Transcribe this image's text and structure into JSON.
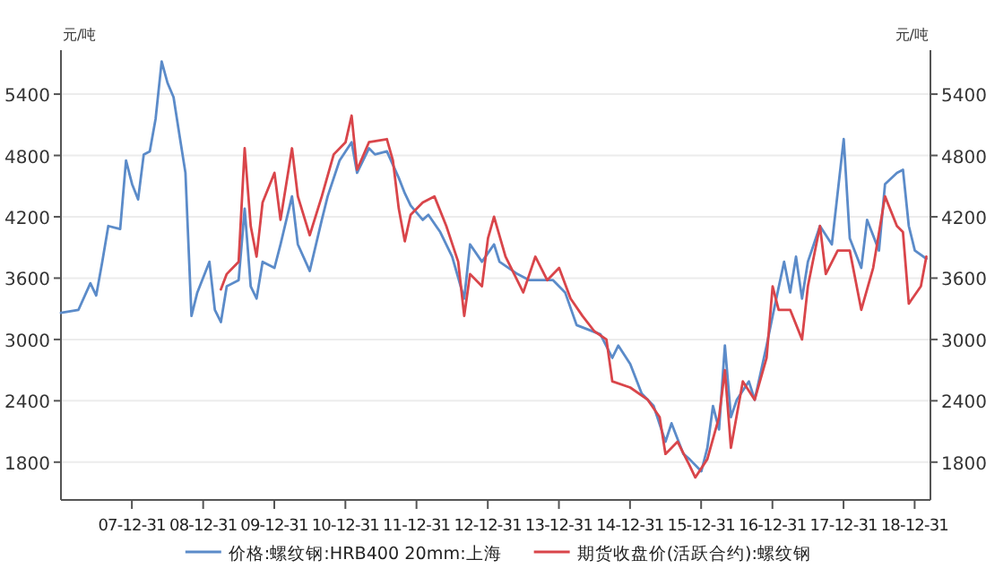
{
  "chart_data": {
    "type": "line",
    "ylabel": "元/吨",
    "y2label": "元/吨",
    "xlim": [
      "2007-01-01",
      "2019-03-22"
    ],
    "xticks": [
      {
        "value": "2007-12-31",
        "label": "07-12-31"
      },
      {
        "value": "2008-12-31",
        "label": "08-12-31"
      },
      {
        "value": "2009-12-31",
        "label": "09-12-31"
      },
      {
        "value": "2010-12-31",
        "label": "10-12-31"
      },
      {
        "value": "2011-12-31",
        "label": "11-12-31"
      },
      {
        "value": "2012-12-31",
        "label": "12-12-31"
      },
      {
        "value": "2013-12-31",
        "label": "13-12-31"
      },
      {
        "value": "2014-12-31",
        "label": "14-12-31"
      },
      {
        "value": "2015-12-31",
        "label": "15-12-31"
      },
      {
        "value": "2016-12-31",
        "label": "16-12-31"
      },
      {
        "value": "2017-12-31",
        "label": "17-12-31"
      },
      {
        "value": "2018-12-31",
        "label": "18-12-31"
      }
    ],
    "ylim": [
      1430,
      5830
    ],
    "yticks": [
      1800,
      2400,
      3000,
      3600,
      4200,
      4800,
      5400
    ],
    "y2lim": [
      1430,
      5830
    ],
    "y2ticks": [
      1800,
      2400,
      3000,
      3600,
      4200,
      4800,
      5400
    ],
    "grid": "y",
    "legend": "bottom",
    "series": [
      {
        "name": "价格:螺纹钢:HRB400 20mm:上海",
        "color": "#5b8bc9",
        "x": [
          "2007-01",
          "2007-04",
          "2007-06",
          "2007-07",
          "2007-08",
          "2007-09",
          "2007-11",
          "2007-12",
          "2008-01",
          "2008-02",
          "2008-03",
          "2008-04",
          "2008-05",
          "2008-06",
          "2008-07",
          "2008-08",
          "2008-09",
          "2008-10",
          "2008-11",
          "2008-12",
          "2009-02",
          "2009-03",
          "2009-04",
          "2009-05",
          "2009-07",
          "2009-08",
          "2009-09",
          "2009-10",
          "2009-11",
          "2010-01",
          "2010-02",
          "2010-04",
          "2010-05",
          "2010-07",
          "2010-09",
          "2010-10",
          "2010-12",
          "2011-02",
          "2011-03",
          "2011-05",
          "2011-06",
          "2011-08",
          "2011-10",
          "2011-11",
          "2011-12",
          "2012-02",
          "2012-03",
          "2012-05",
          "2012-07",
          "2012-09",
          "2012-10",
          "2012-12",
          "2013-02",
          "2013-03",
          "2013-06",
          "2013-08",
          "2013-12",
          "2014-02",
          "2014-04",
          "2014-08",
          "2014-10",
          "2014-11",
          "2015-01",
          "2015-03",
          "2015-05",
          "2015-07",
          "2015-08",
          "2015-10",
          "2015-11",
          "2016-01",
          "2016-02",
          "2016-03",
          "2016-04",
          "2016-05",
          "2016-06",
          "2016-07",
          "2016-09",
          "2016-10",
          "2016-12",
          "2017-01",
          "2017-03",
          "2017-04",
          "2017-05",
          "2017-06",
          "2017-07",
          "2017-09",
          "2017-11",
          "2018-01",
          "2018-02",
          "2018-04",
          "2018-05",
          "2018-07",
          "2018-08",
          "2018-10",
          "2018-11",
          "2018-12",
          "2019-01",
          "2019-03"
        ],
        "values": [
          3260,
          3290,
          3550,
          3430,
          3760,
          4110,
          4080,
          4750,
          4520,
          4370,
          4810,
          4840,
          5160,
          5720,
          5510,
          5370,
          4990,
          4630,
          3230,
          3460,
          3760,
          3290,
          3170,
          3520,
          3580,
          4280,
          3520,
          3400,
          3760,
          3700,
          3930,
          4400,
          3930,
          3670,
          4170,
          4400,
          4750,
          4930,
          4630,
          4870,
          4810,
          4840,
          4580,
          4430,
          4310,
          4170,
          4220,
          4050,
          3810,
          3400,
          3930,
          3760,
          3930,
          3760,
          3640,
          3580,
          3580,
          3460,
          3140,
          3050,
          2820,
          2940,
          2760,
          2470,
          2350,
          2000,
          2180,
          1880,
          1830,
          1710,
          1940,
          2350,
          2120,
          2940,
          2240,
          2410,
          2590,
          2410,
          2940,
          3230,
          3760,
          3460,
          3810,
          3400,
          3760,
          4110,
          3930,
          4960,
          3990,
          3700,
          4170,
          3870,
          4520,
          4630,
          4660,
          4110,
          3870,
          3790
        ]
      },
      {
        "name": "期货收盘价(活跃合约):螺纹钢",
        "color": "#d9454a",
        "x": [
          "2009-04",
          "2009-05",
          "2009-07",
          "2009-08",
          "2009-09",
          "2009-10",
          "2009-11",
          "2010-01",
          "2010-02",
          "2010-04",
          "2010-05",
          "2010-07",
          "2010-09",
          "2010-11",
          "2011-01",
          "2011-02",
          "2011-03",
          "2011-05",
          "2011-08",
          "2011-09",
          "2011-10",
          "2011-11",
          "2011-12",
          "2012-02",
          "2012-04",
          "2012-06",
          "2012-08",
          "2012-09",
          "2012-10",
          "2012-12",
          "2013-01",
          "2013-02",
          "2013-04",
          "2013-07",
          "2013-09",
          "2013-11",
          "2014-01",
          "2014-03",
          "2014-05",
          "2014-07",
          "2014-09",
          "2014-10",
          "2015-01",
          "2015-04",
          "2015-06",
          "2015-07",
          "2015-09",
          "2015-11",
          "2015-12",
          "2016-02",
          "2016-04",
          "2016-05",
          "2016-06",
          "2016-08",
          "2016-10",
          "2016-12",
          "2017-01",
          "2017-02",
          "2017-04",
          "2017-06",
          "2017-07",
          "2017-09",
          "2017-10",
          "2017-12",
          "2018-02",
          "2018-04",
          "2018-06",
          "2018-08",
          "2018-10",
          "2018-11",
          "2018-12",
          "2019-02",
          "2019-03"
        ],
        "values": [
          3490,
          3640,
          3760,
          4870,
          4110,
          3810,
          4340,
          4630,
          4170,
          4870,
          4400,
          4020,
          4400,
          4810,
          4930,
          5190,
          4660,
          4930,
          4960,
          4750,
          4280,
          3960,
          4220,
          4340,
          4400,
          4110,
          3760,
          3230,
          3640,
          3520,
          3990,
          4200,
          3810,
          3460,
          3810,
          3580,
          3700,
          3400,
          3230,
          3080,
          3000,
          2590,
          2530,
          2410,
          2240,
          1880,
          2000,
          1770,
          1650,
          1830,
          2240,
          2700,
          1940,
          2590,
          2410,
          2820,
          3520,
          3290,
          3290,
          3000,
          3520,
          4110,
          3640,
          3870,
          3870,
          3290,
          3700,
          4400,
          4110,
          4050,
          3350,
          3520,
          3810
        ]
      }
    ]
  }
}
